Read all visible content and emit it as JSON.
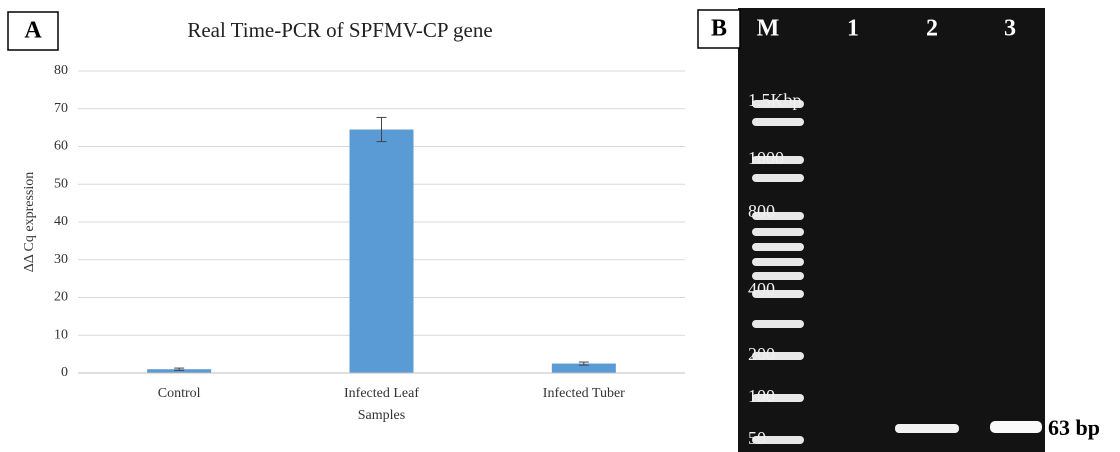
{
  "chart_data": {
    "type": "bar",
    "title": "Real Time-PCR of SPFMV-CP gene",
    "y_label": "ΔΔ Cq expression",
    "categories": [
      "Control",
      "Infected Leaf Samples",
      "Infected Tuber"
    ],
    "values": [
      1,
      64.5,
      2.5
    ],
    "errors": [
      0.3,
      3.2,
      0.4
    ],
    "color": "#5b9bd5",
    "ylim": [
      0,
      80
    ],
    "yticks": [
      0,
      10,
      20,
      30,
      40,
      50,
      60,
      70,
      80
    ],
    "grid": true
  },
  "panel_labels": [
    "A",
    "B"
  ],
  "gel": {
    "lanes": [
      "M",
      "1",
      "2",
      "3"
    ],
    "ladder": [
      "1.5Kbp",
      "1000",
      "800",
      "400",
      "200",
      "100",
      "50"
    ],
    "band_label": "63 bp"
  }
}
